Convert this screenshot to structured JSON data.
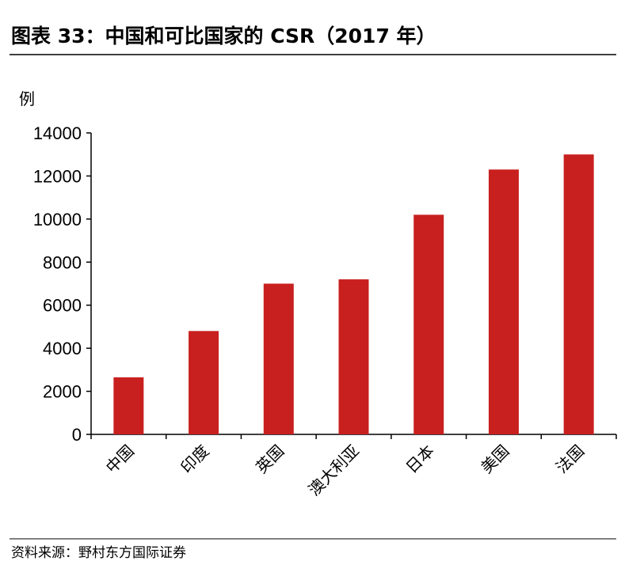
{
  "chart_data": {
    "type": "bar",
    "title": "图表 33：中国和可比国家的 CSR（2017 年）",
    "y_label": "例",
    "source": "资料来源：野村东方国际证券",
    "categories": [
      "中国",
      "印度",
      "英国",
      "澳大利亚",
      "日本",
      "美国",
      "法国"
    ],
    "values": [
      2650,
      4800,
      7000,
      7200,
      10200,
      12300,
      13000
    ],
    "color": "#c8201f",
    "ylim": [
      0,
      14000
    ],
    "yticks": [
      0,
      2000,
      4000,
      6000,
      8000,
      10000,
      12000,
      14000
    ],
    "grid": false
  }
}
